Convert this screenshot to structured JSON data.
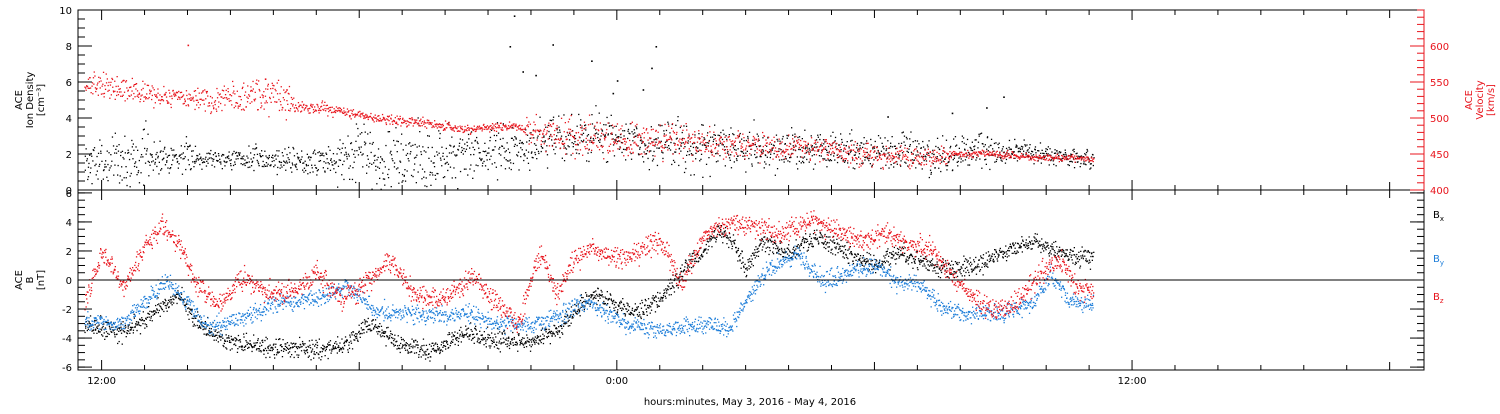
{
  "figure": {
    "xlabel": "hours:minutes, May  3, 2016 - May  4, 2016",
    "time_start_hours": 11.45,
    "time_end_hours": 42.8
  },
  "chart_data": [
    {
      "type": "scatter",
      "panel": "density-velocity",
      "ylabel_left": [
        "ACE",
        "Ion Density",
        "[cm⁻³]"
      ],
      "ylabel_right": [
        "ACE",
        "Velocity",
        "[km/s]"
      ],
      "ylim_left": [
        0,
        10
      ],
      "ylim_right": [
        400,
        650
      ],
      "yticks_left": [
        "0",
        "2",
        "4",
        "6",
        "8",
        "10"
      ],
      "yticks_right": [
        "400",
        "450",
        "500",
        "550",
        "600"
      ],
      "series": [
        {
          "axis": "left",
          "color": "#000000",
          "knots": [
            [
              12.0,
              1.5
            ],
            [
              13.5,
              1.9
            ],
            [
              15.0,
              1.8
            ],
            [
              16.5,
              1.7
            ],
            [
              17.5,
              1.6
            ],
            [
              18.0,
              2.3
            ],
            [
              18.5,
              1.6
            ],
            [
              20.5,
              1.9
            ],
            [
              21.5,
              2.3
            ],
            [
              22.5,
              2.8
            ],
            [
              23.5,
              3.1
            ],
            [
              24.5,
              2.6
            ],
            [
              26.0,
              2.4
            ],
            [
              27.5,
              2.3
            ],
            [
              29.0,
              2.2
            ],
            [
              30.5,
              2.1
            ],
            [
              31.5,
              1.9
            ],
            [
              32.5,
              2.3
            ],
            [
              33.5,
              2.1
            ],
            [
              34.5,
              1.9
            ],
            [
              35.0,
              1.7
            ]
          ],
          "scatter": [
            1.2,
            0.7,
            0.4,
            0.5,
            0.6,
            1.2,
            1.5,
            1.2,
            1.1,
            1.0,
            1.0,
            0.9,
            1.0,
            0.9,
            0.8,
            0.8,
            0.8,
            0.8,
            0.7,
            0.5,
            0.4
          ],
          "outliers": [
            [
              21.6,
              9.7
            ],
            [
              21.5,
              8.0
            ],
            [
              22.5,
              8.1
            ],
            [
              23.4,
              7.2
            ],
            [
              22.1,
              6.4
            ],
            [
              24.0,
              6.1
            ],
            [
              24.9,
              8.0
            ],
            [
              24.8,
              6.8
            ],
            [
              21.8,
              6.6
            ],
            [
              23.9,
              5.4
            ],
            [
              24.6,
              5.6
            ],
            [
              33.0,
              5.2
            ],
            [
              32.6,
              4.6
            ],
            [
              30.3,
              4.1
            ],
            [
              31.8,
              4.3
            ]
          ]
        },
        {
          "axis": "right",
          "color": "#e8141c",
          "knots": [
            [
              12.0,
              545
            ],
            [
              13.5,
              530
            ],
            [
              14.5,
              525
            ],
            [
              15.5,
              535
            ],
            [
              16.5,
              518
            ],
            [
              17.5,
              510
            ],
            [
              18.5,
              500
            ],
            [
              19.5,
              493
            ],
            [
              20.5,
              485
            ],
            [
              21.5,
              490
            ],
            [
              22.5,
              478
            ],
            [
              24.0,
              470
            ],
            [
              25.5,
              468
            ],
            [
              27.0,
              462
            ],
            [
              28.5,
              458
            ],
            [
              29.5,
              452
            ],
            [
              30.5,
              447
            ],
            [
              31.5,
              448
            ],
            [
              32.5,
              452
            ],
            [
              33.5,
              447
            ],
            [
              35.0,
              444
            ]
          ],
          "scatter": [
            12,
            10,
            15,
            18,
            7,
            5,
            5,
            5,
            4,
            18,
            20,
            18,
            16,
            14,
            12,
            12,
            12,
            10,
            4,
            4,
            3
          ],
          "outliers": [
            [
              14.0,
              602
            ],
            [
              15.8,
              555
            ],
            [
              16.3,
              540
            ]
          ]
        }
      ]
    },
    {
      "type": "scatter",
      "panel": "magnetic-field",
      "ylabel_left": [
        "ACE",
        "B",
        "[nT]"
      ],
      "ylim": [
        -6.2,
        6.2
      ],
      "yticks": [
        "-6",
        "-4",
        "-2",
        "0",
        "2",
        "4",
        "6"
      ],
      "legend": [
        {
          "label": "B",
          "sub": "x",
          "color": "#000000"
        },
        {
          "label": "B",
          "sub": "y",
          "color": "#1e7ed9"
        },
        {
          "label": "B",
          "sub": "z",
          "color": "#e8141c"
        }
      ],
      "series": [
        {
          "name": "Bx",
          "color": "#000000",
          "knots": [
            [
              11.6,
              -3.0
            ],
            [
              12.5,
              -3.6
            ],
            [
              13.0,
              -2.6
            ],
            [
              13.8,
              -1.0
            ],
            [
              14.3,
              -3.2
            ],
            [
              15.0,
              -4.3
            ],
            [
              16.0,
              -4.6
            ],
            [
              17.0,
              -4.7
            ],
            [
              17.7,
              -4.5
            ],
            [
              18.2,
              -3.0
            ],
            [
              19.0,
              -4.5
            ],
            [
              19.8,
              -4.8
            ],
            [
              20.5,
              -3.5
            ],
            [
              21.2,
              -4.2
            ],
            [
              22.0,
              -4.3
            ],
            [
              22.7,
              -3.2
            ],
            [
              23.0,
              -2.0
            ],
            [
              23.5,
              -1.0
            ],
            [
              24.0,
              -1.7
            ],
            [
              24.5,
              -2.2
            ],
            [
              25.0,
              -1.3
            ],
            [
              25.5,
              0.6
            ],
            [
              26.0,
              2.0
            ],
            [
              26.4,
              3.5
            ],
            [
              26.7,
              2.5
            ],
            [
              27.0,
              0.8
            ],
            [
              27.4,
              2.8
            ],
            [
              28.0,
              1.8
            ],
            [
              28.6,
              3.0
            ],
            [
              29.3,
              2.0
            ],
            [
              30.0,
              1.0
            ],
            [
              30.6,
              1.9
            ],
            [
              31.2,
              1.2
            ],
            [
              31.8,
              0.8
            ],
            [
              32.3,
              0.9
            ],
            [
              33.0,
              2.0
            ],
            [
              33.7,
              2.7
            ],
            [
              34.0,
              2.3
            ],
            [
              34.5,
              1.8
            ],
            [
              35.0,
              1.6
            ]
          ],
          "scatter": 0.5
        },
        {
          "name": "By",
          "color": "#1e7ed9",
          "knots": [
            [
              11.6,
              -2.7
            ],
            [
              12.5,
              -3.0
            ],
            [
              13.0,
              -1.5
            ],
            [
              13.5,
              0.0
            ],
            [
              14.0,
              -1.6
            ],
            [
              14.5,
              -3.2
            ],
            [
              15.3,
              -2.6
            ],
            [
              16.0,
              -1.6
            ],
            [
              17.0,
              -1.3
            ],
            [
              17.7,
              -0.4
            ],
            [
              18.4,
              -2.1
            ],
            [
              19.5,
              -2.4
            ],
            [
              20.5,
              -2.3
            ],
            [
              21.3,
              -3.0
            ],
            [
              22.0,
              -3.1
            ],
            [
              22.7,
              -2.4
            ],
            [
              23.3,
              -1.4
            ],
            [
              23.7,
              -2.3
            ],
            [
              24.3,
              -3.0
            ],
            [
              25.0,
              -3.4
            ],
            [
              26.0,
              -3.0
            ],
            [
              26.6,
              -3.3
            ],
            [
              27.1,
              -1.0
            ],
            [
              27.5,
              0.8
            ],
            [
              28.2,
              1.8
            ],
            [
              28.8,
              -0.1
            ],
            [
              29.4,
              0.6
            ],
            [
              30.0,
              1.1
            ],
            [
              30.5,
              -0.1
            ],
            [
              31.0,
              -0.1
            ],
            [
              31.5,
              -1.8
            ],
            [
              32.2,
              -2.3
            ],
            [
              33.0,
              -2.2
            ],
            [
              33.7,
              -1.6
            ],
            [
              34.1,
              0.5
            ],
            [
              34.5,
              -1.4
            ],
            [
              35.0,
              -1.7
            ]
          ],
          "scatter": 0.45
        },
        {
          "name": "Bz",
          "color": "#e8141c",
          "knots": [
            [
              11.6,
              -1.5
            ],
            [
              12.0,
              2.0
            ],
            [
              12.5,
              -0.5
            ],
            [
              13.0,
              2.3
            ],
            [
              13.4,
              3.9
            ],
            [
              13.8,
              2.5
            ],
            [
              14.2,
              -0.2
            ],
            [
              14.7,
              -1.8
            ],
            [
              15.3,
              0.3
            ],
            [
              15.8,
              -0.8
            ],
            [
              16.5,
              -0.7
            ],
            [
              17.0,
              0.5
            ],
            [
              17.6,
              -1.3
            ],
            [
              18.0,
              -0.5
            ],
            [
              18.7,
              1.5
            ],
            [
              19.3,
              -1.0
            ],
            [
              20.0,
              -1.3
            ],
            [
              20.6,
              0.5
            ],
            [
              21.2,
              -1.7
            ],
            [
              21.7,
              -3.0
            ],
            [
              22.2,
              2.0
            ],
            [
              22.6,
              -1.0
            ],
            [
              23.0,
              1.5
            ],
            [
              23.5,
              2.2
            ],
            [
              24.0,
              1.5
            ],
            [
              24.5,
              1.9
            ],
            [
              25.0,
              2.8
            ],
            [
              25.5,
              -0.3
            ],
            [
              26.0,
              3.0
            ],
            [
              26.6,
              4.0
            ],
            [
              27.2,
              3.6
            ],
            [
              27.8,
              3.2
            ],
            [
              28.5,
              4.2
            ],
            [
              29.0,
              3.5
            ],
            [
              29.7,
              2.6
            ],
            [
              30.3,
              3.3
            ],
            [
              30.8,
              2.5
            ],
            [
              31.3,
              2.3
            ],
            [
              31.8,
              0.4
            ],
            [
              32.3,
              -1.2
            ],
            [
              32.8,
              -2.2
            ],
            [
              33.3,
              -1.5
            ],
            [
              33.8,
              0.3
            ],
            [
              34.3,
              1.4
            ],
            [
              34.7,
              -0.5
            ],
            [
              35.0,
              -0.8
            ]
          ],
          "scatter": 0.55
        }
      ]
    }
  ],
  "xticks": [
    {
      "hour": 12,
      "label": "12:00"
    },
    {
      "hour": 24,
      "label": "0:00"
    },
    {
      "hour": 36,
      "label": "12:00"
    }
  ]
}
